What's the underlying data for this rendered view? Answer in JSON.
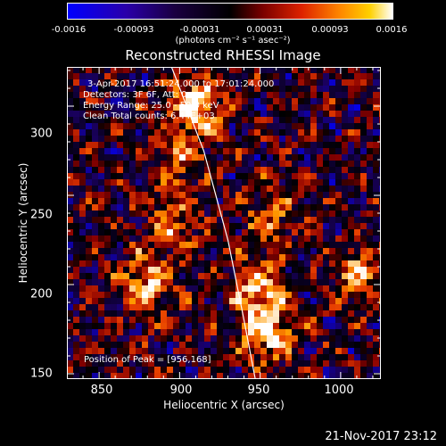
{
  "chart_data": {
    "type": "heatmap",
    "title": "Reconstructed RHESSI Image",
    "xlabel": "Heliocentric X (arcsec)",
    "ylabel": "Heliocentric Y (arcsec)",
    "xlim": [
      830,
      1025
    ],
    "ylim": [
      147,
      322
    ],
    "x_ticks": [
      850,
      900,
      950,
      1000
    ],
    "y_ticks": [
      150,
      200,
      250,
      300
    ],
    "colorbar": {
      "ticks": [
        "-0.0016",
        "-0.00093",
        "-0.00031",
        "0.00031",
        "0.00093",
        "0.0016"
      ],
      "unit_label": "(photons cm⁻² s⁻¹ asec⁻²)",
      "range": [
        -0.0016,
        0.0016
      ]
    },
    "annotations": {
      "time": "3-Apr-2017 16:51:24.000 to 17:01:24.000",
      "detectors": "Detectors: 3F 6F, Att: 0",
      "energy": "Energy Range: 25.0 - 50.0 keV",
      "clean": "Clean     Total counts: 6.44E+03",
      "peak": "Position of Peak = [956,168]"
    },
    "limb_curve": [
      [
        895,
        322
      ],
      [
        915,
        275
      ],
      [
        930,
        225
      ],
      [
        940,
        180
      ],
      [
        947,
        147
      ]
    ],
    "peak_position": [
      956,
      168
    ],
    "grid": false,
    "colormap": [
      "#0000ff",
      "#1a0060",
      "#000000",
      "#8a0000",
      "#e63c00",
      "#ff9a00",
      "#ffffff"
    ]
  },
  "footer": {
    "date": "21-Nov-2017 23:12"
  }
}
